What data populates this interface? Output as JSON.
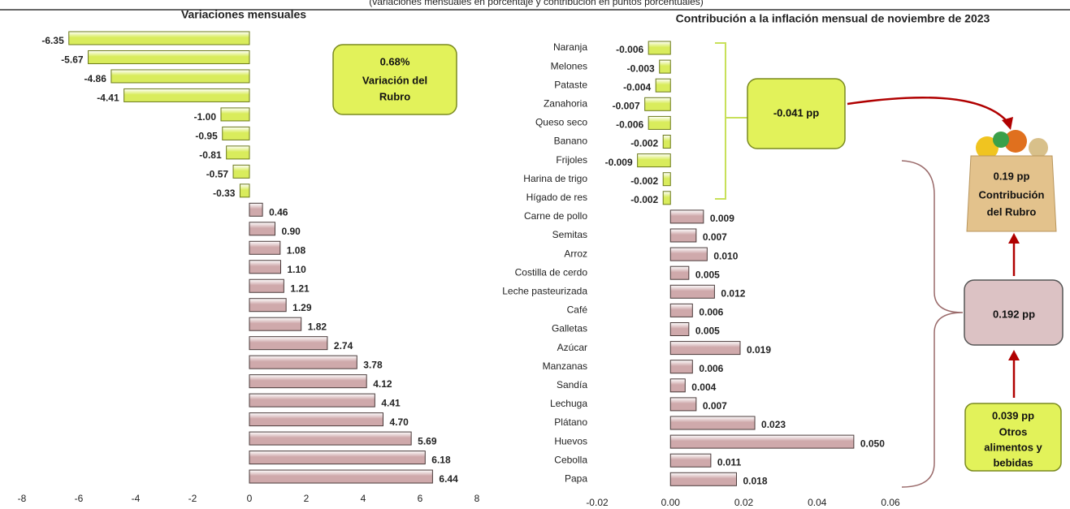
{
  "header": {
    "subtitle": "(variaciones mensuales en porcentaje y contribución en puntos porcentuales)"
  },
  "annotations": {
    "rubro_variation": [
      "0.68%",
      "Variación del",
      "Rubro"
    ],
    "negative_contribution": "-0.041 pp",
    "rubro_contribution": [
      "0.19 pp",
      "Contribución",
      "del Rubro"
    ],
    "positive_contribution": "0.192 pp",
    "other_foods": [
      "0.039 pp",
      "Otros",
      "alimentos y",
      "bebidas"
    ]
  },
  "chart_data": [
    {
      "type": "hbar",
      "title": "Variaciones mensuales",
      "categories": [
        null,
        null,
        null,
        null,
        null,
        null,
        null,
        null,
        null,
        null,
        null,
        null,
        null,
        null,
        null,
        null,
        null,
        null,
        null,
        null,
        null,
        null,
        null,
        null
      ],
      "values": [
        -6.35,
        -5.67,
        -4.86,
        -4.41,
        -1.0,
        -0.95,
        -0.81,
        -0.57,
        -0.33,
        0.46,
        0.9,
        1.08,
        1.1,
        1.21,
        1.29,
        1.82,
        2.74,
        3.78,
        4.12,
        4.41,
        4.7,
        5.69,
        6.18,
        6.44
      ],
      "value_labels": [
        "-6.35",
        "-5.67",
        "-4.86",
        "-4.41",
        "-1.00",
        "-0.95",
        "-0.81",
        "-0.57",
        "-0.33",
        "0.46",
        "0.90",
        "1.08",
        "1.10",
        "1.21",
        "1.29",
        "1.82",
        "2.74",
        "3.78",
        "4.12",
        "4.41",
        "4.70",
        "5.69",
        "6.18",
        "6.44"
      ],
      "negative_color": "#d9ec5c",
      "positive_color": "#cfa9ab",
      "xlim": [
        -8,
        8
      ],
      "xticks": [
        -8,
        -6,
        -4,
        -2,
        0,
        2,
        4,
        6,
        8
      ]
    },
    {
      "type": "hbar",
      "title": "Contribución a la inflación mensual de noviembre de 2023",
      "categories": [
        "Naranja",
        "Melones",
        "Pataste",
        "Zanahoria",
        "Queso seco",
        "Banano",
        "Frijoles",
        "Harina de trigo",
        "Hígado de res",
        "Carne de pollo",
        "Semitas",
        "Arroz",
        "Costilla de cerdo",
        "Leche pasteurizada",
        "Café",
        "Galletas",
        "Azúcar",
        "Manzanas",
        "Sandía",
        "Lechuga",
        "Plátano",
        "Huevos",
        "Cebolla",
        "Papa"
      ],
      "values": [
        -0.006,
        -0.003,
        -0.004,
        -0.007,
        -0.006,
        -0.002,
        -0.009,
        -0.002,
        -0.002,
        0.009,
        0.007,
        0.01,
        0.005,
        0.012,
        0.006,
        0.005,
        0.019,
        0.006,
        0.004,
        0.007,
        0.023,
        0.05,
        0.011,
        0.018
      ],
      "value_labels": [
        "-0.006",
        "-0.003",
        "-0.004",
        "-0.007",
        "-0.006",
        "-0.002",
        "-0.009",
        "-0.002",
        "-0.002",
        "0.009",
        "0.007",
        "0.010",
        "0.005",
        "0.012",
        "0.006",
        "0.005",
        "0.019",
        "0.006",
        "0.004",
        "0.007",
        "0.023",
        "0.050",
        "0.011",
        "0.018"
      ],
      "negative_color": "#d9ec5c",
      "positive_color": "#cfa9ab",
      "xlim": [
        -0.02,
        0.06
      ],
      "xticks": [
        -0.02,
        {
          "value": 0,
          "label": "0.00"
        },
        0.02,
        0.04,
        0.06
      ]
    }
  ]
}
